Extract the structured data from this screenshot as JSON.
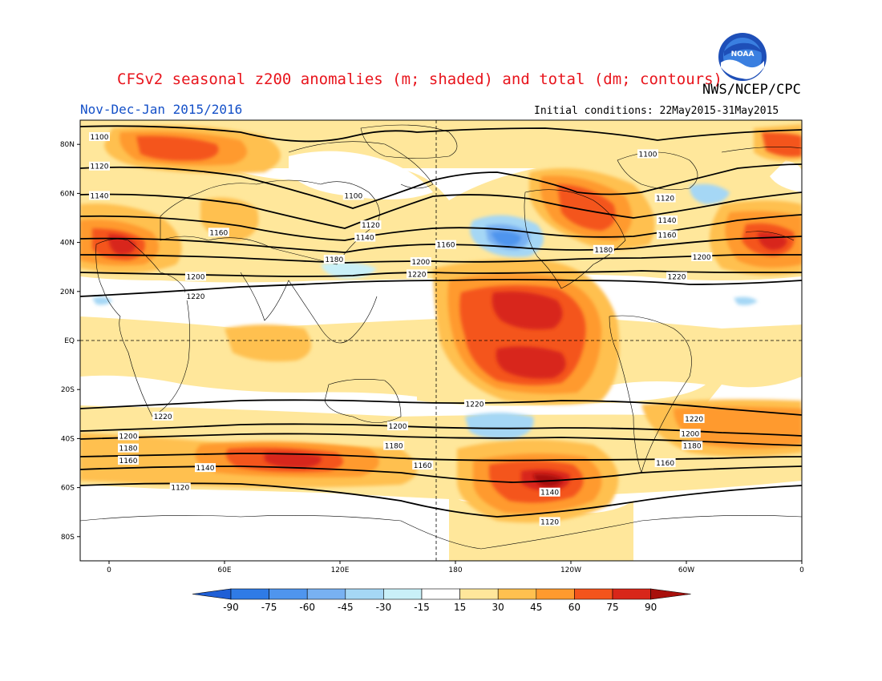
{
  "header": {
    "title": "CFSv2 seasonal z200 anomalies (m; shaded) and total (dm; contours)",
    "agency": "NWS/NCEP/CPC",
    "period": "Nov-Dec-Jan 2015/2016",
    "initial_conditions": "Initial conditions: 22May2015-31May2015",
    "logo_text": "NOAA"
  },
  "map": {
    "lon_ticks": [
      "0",
      "60E",
      "120E",
      "180",
      "120W",
      "60W",
      "0"
    ],
    "lat_ticks": [
      "80N",
      "60N",
      "40N",
      "20N",
      "EQ",
      "20S",
      "40S",
      "60S",
      "80S"
    ],
    "contour_labels": [
      {
        "text": "1100",
        "lon": -5,
        "lat": 83
      },
      {
        "text": "1100",
        "lon": 127,
        "lat": 59
      },
      {
        "text": "1100",
        "lon": 280,
        "lat": 76
      },
      {
        "text": "1120",
        "lon": -5,
        "lat": 71
      },
      {
        "text": "1120",
        "lon": 136,
        "lat": 47
      },
      {
        "text": "1120",
        "lon": 289,
        "lat": 58
      },
      {
        "text": "1140",
        "lon": -5,
        "lat": 59
      },
      {
        "text": "1140",
        "lon": 133,
        "lat": 42
      },
      {
        "text": "1140",
        "lon": 290,
        "lat": 49
      },
      {
        "text": "1160",
        "lon": 57,
        "lat": 44
      },
      {
        "text": "1160",
        "lon": 175,
        "lat": 39
      },
      {
        "text": "1160",
        "lon": 290,
        "lat": 43
      },
      {
        "text": "1180",
        "lon": 117,
        "lat": 33
      },
      {
        "text": "1180",
        "lon": 257,
        "lat": 37
      },
      {
        "text": "1200",
        "lon": 162,
        "lat": 32
      },
      {
        "text": "1200",
        "lon": 308,
        "lat": 34
      },
      {
        "text": "1200",
        "lon": 45,
        "lat": 26
      },
      {
        "text": "1220",
        "lon": 160,
        "lat": 27
      },
      {
        "text": "1220",
        "lon": 295,
        "lat": 26
      },
      {
        "text": "1220",
        "lon": 45,
        "lat": 18
      },
      {
        "text": "1220",
        "lon": 190,
        "lat": -26
      },
      {
        "text": "1220",
        "lon": 28,
        "lat": -31
      },
      {
        "text": "1220",
        "lon": 304,
        "lat": -32
      },
      {
        "text": "1200",
        "lon": 150,
        "lat": -35
      },
      {
        "text": "1200",
        "lon": 302,
        "lat": -38
      },
      {
        "text": "1200",
        "lon": 10,
        "lat": -39
      },
      {
        "text": "1180",
        "lon": 10,
        "lat": -44
      },
      {
        "text": "1180",
        "lon": 148,
        "lat": -43
      },
      {
        "text": "1180",
        "lon": 303,
        "lat": -43
      },
      {
        "text": "1160",
        "lon": 10,
        "lat": -49
      },
      {
        "text": "1160",
        "lon": 163,
        "lat": -51
      },
      {
        "text": "1160",
        "lon": 289,
        "lat": -50
      },
      {
        "text": "1140",
        "lon": 50,
        "lat": -52
      },
      {
        "text": "1140",
        "lon": 229,
        "lat": -62
      },
      {
        "text": "1120",
        "lon": 37,
        "lat": -60
      },
      {
        "text": "1120",
        "lon": 229,
        "lat": -74
      }
    ]
  },
  "colorbar": {
    "labels": [
      "-90",
      "-75",
      "-60",
      "-45",
      "-30",
      "-15",
      "15",
      "30",
      "45",
      "60",
      "75",
      "90"
    ],
    "colors": [
      "#1f5fd6",
      "#2f7be6",
      "#4f95ee",
      "#78b1f2",
      "#a5d7f5",
      "#c9f0f8",
      "#ffffff",
      "#ffe79b",
      "#ffc04f",
      "#ff9a2e",
      "#f4541c",
      "#d8261a",
      "#a8100c"
    ]
  }
}
